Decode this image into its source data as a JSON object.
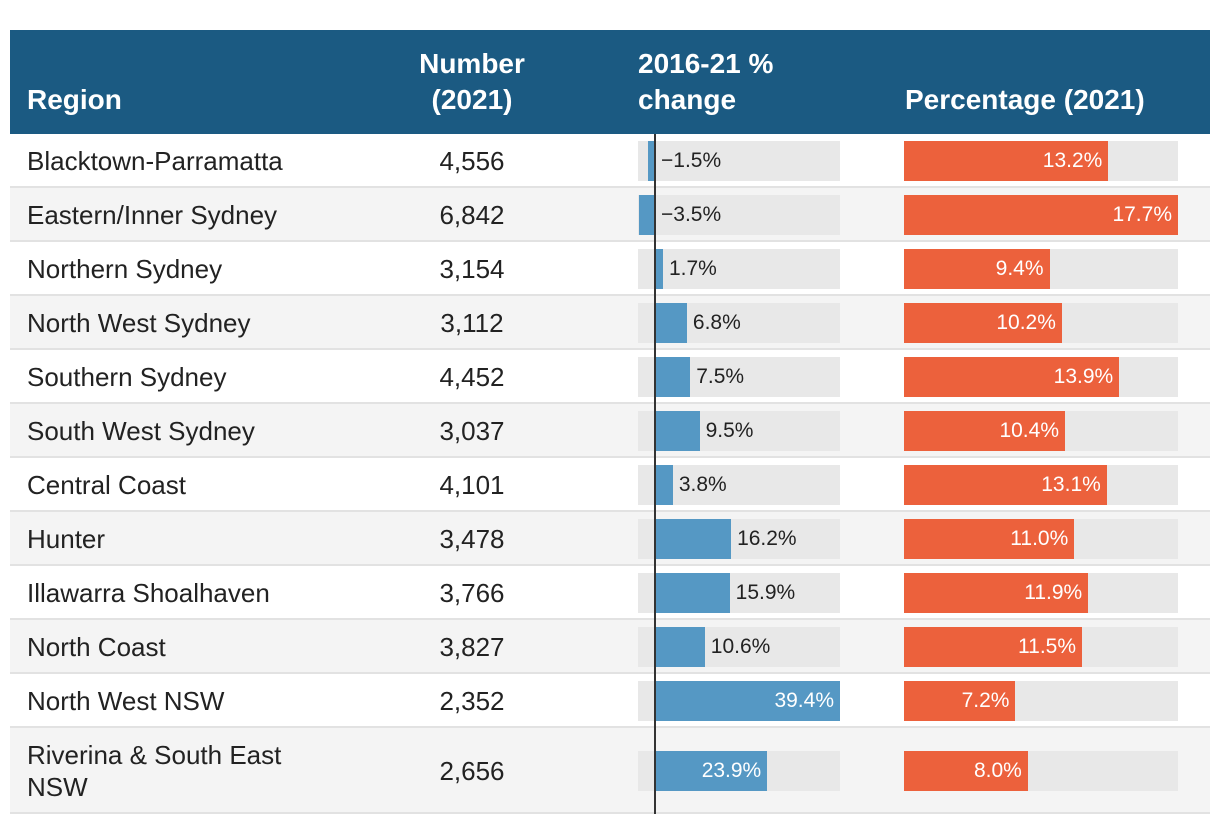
{
  "header": {
    "region": "Region",
    "number": "Number (2021)",
    "change": "2016-21 % change",
    "percentage": "Percentage (2021)"
  },
  "colors": {
    "header_bg": "#1b5a82",
    "change_bar": "#5598c4",
    "pct_bar": "#ec613c",
    "track": "#e8e8e8"
  },
  "chart_data": {
    "type": "table",
    "columns": [
      "Region",
      "Number (2021)",
      "2016-21 % change",
      "Percentage (2021)"
    ],
    "change_range": [
      -3.5,
      39.4
    ],
    "percentage_range": [
      0,
      17.7
    ],
    "rows": [
      {
        "region": "Blacktown-Parramatta",
        "number": "4,556",
        "change": -1.5,
        "change_label": "−1.5%",
        "percentage": 13.2,
        "percentage_label": "13.2%"
      },
      {
        "region": "Eastern/Inner Sydney",
        "number": "6,842",
        "change": -3.5,
        "change_label": "−3.5%",
        "percentage": 17.7,
        "percentage_label": "17.7%"
      },
      {
        "region": "Northern Sydney",
        "number": "3,154",
        "change": 1.7,
        "change_label": "1.7%",
        "percentage": 9.4,
        "percentage_label": "9.4%"
      },
      {
        "region": "North West Sydney",
        "number": "3,112",
        "change": 6.8,
        "change_label": "6.8%",
        "percentage": 10.2,
        "percentage_label": "10.2%"
      },
      {
        "region": "Southern Sydney",
        "number": "4,452",
        "change": 7.5,
        "change_label": "7.5%",
        "percentage": 13.9,
        "percentage_label": "13.9%"
      },
      {
        "region": "South West Sydney",
        "number": "3,037",
        "change": 9.5,
        "change_label": "9.5%",
        "percentage": 10.4,
        "percentage_label": "10.4%"
      },
      {
        "region": "Central Coast",
        "number": "4,101",
        "change": 3.8,
        "change_label": "3.8%",
        "percentage": 13.1,
        "percentage_label": "13.1%"
      },
      {
        "region": "Hunter",
        "number": "3,478",
        "change": 16.2,
        "change_label": "16.2%",
        "percentage": 11.0,
        "percentage_label": "11.0%"
      },
      {
        "region": "Illawarra Shoalhaven",
        "number": "3,766",
        "change": 15.9,
        "change_label": "15.9%",
        "percentage": 11.9,
        "percentage_label": "11.9%"
      },
      {
        "region": "North Coast",
        "number": "3,827",
        "change": 10.6,
        "change_label": "10.6%",
        "percentage": 11.5,
        "percentage_label": "11.5%"
      },
      {
        "region": "North West NSW",
        "number": "2,352",
        "change": 39.4,
        "change_label": "39.4%",
        "percentage": 7.2,
        "percentage_label": "7.2%"
      },
      {
        "region": "Riverina & South East NSW",
        "number": "2,656",
        "change": 23.9,
        "change_label": "23.9%",
        "percentage": 8.0,
        "percentage_label": "8.0%"
      }
    ]
  }
}
